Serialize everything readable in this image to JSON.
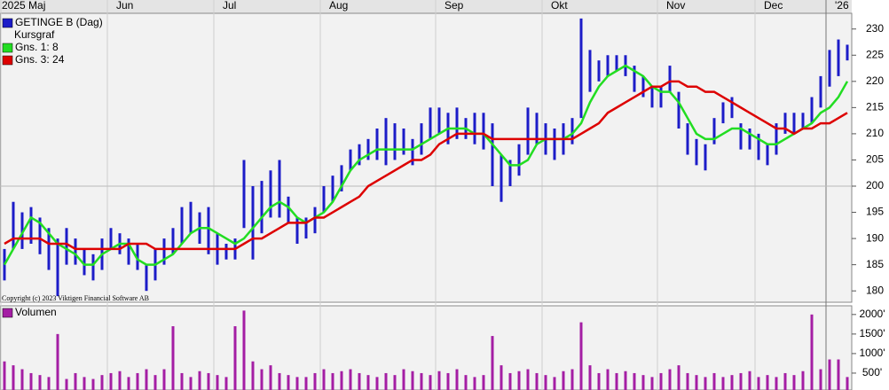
{
  "chart_data": [
    {
      "type": "range-bar",
      "legend_title": "Kursgraf",
      "copyright": "Copyright (c) 2023 Viktigen Financial Software AB",
      "categories": [
        "2025 Maj",
        null,
        null,
        null,
        null,
        null,
        null,
        null,
        null,
        null,
        null,
        null,
        "Jun",
        null,
        null,
        null,
        null,
        null,
        null,
        null,
        null,
        null,
        null,
        null,
        "Jul",
        null,
        null,
        null,
        null,
        null,
        null,
        null,
        null,
        null,
        null,
        null,
        "Aug",
        null,
        null,
        null,
        null,
        null,
        null,
        null,
        null,
        null,
        null,
        null,
        null,
        "Sep",
        null,
        null,
        null,
        null,
        null,
        null,
        null,
        null,
        null,
        null,
        null,
        "Okt",
        null,
        null,
        null,
        null,
        null,
        null,
        null,
        null,
        null,
        null,
        null,
        null,
        "Nov",
        null,
        null,
        null,
        null,
        null,
        null,
        null,
        null,
        null,
        null,
        "Dec",
        null,
        null,
        null,
        null,
        null,
        null,
        null,
        "'26",
        null,
        null
      ],
      "ylim": [
        178,
        233
      ],
      "yticks": [
        180,
        185,
        190,
        195,
        200,
        205,
        210,
        215,
        220,
        225,
        230
      ],
      "ref_line": 200,
      "series": [
        {
          "name": "GETINGE B (Dag)",
          "color": "#1c1cc8",
          "low": [
            182,
            188,
            188,
            189,
            187,
            184,
            179,
            185,
            185,
            183,
            182,
            184,
            188,
            187,
            185,
            184,
            180,
            182,
            185,
            187,
            189,
            191,
            189,
            187,
            185,
            186,
            186,
            192,
            186,
            191,
            194,
            194,
            193,
            189,
            190,
            191,
            195,
            197,
            199,
            203,
            204,
            205,
            205,
            204,
            205,
            206,
            204,
            206,
            209,
            210,
            208,
            209,
            209,
            208,
            207,
            200,
            197,
            200,
            202,
            206,
            208,
            206,
            205,
            206,
            208,
            213,
            218,
            220,
            221,
            222,
            221,
            218,
            217,
            215,
            215,
            218,
            211,
            206,
            204,
            203,
            208,
            212,
            213,
            207,
            207,
            205,
            204,
            206,
            210,
            210,
            211,
            212,
            215,
            219,
            221,
            224
          ],
          "high": [
            188,
            197,
            195,
            196,
            194,
            192,
            190,
            192,
            190,
            188,
            187,
            190,
            192,
            191,
            190,
            189,
            185,
            188,
            190,
            192,
            196,
            197,
            195,
            196,
            191,
            189,
            190,
            205,
            200,
            201,
            203,
            205,
            198,
            194,
            194,
            196,
            200,
            202,
            204,
            207,
            208,
            209,
            211,
            213,
            212,
            211,
            209,
            212,
            215,
            215,
            214,
            215,
            213,
            214,
            214,
            212,
            206,
            205,
            208,
            215,
            214,
            212,
            211,
            212,
            213,
            232,
            226,
            224,
            225,
            225,
            225,
            223,
            221,
            219,
            219,
            223,
            218,
            212,
            209,
            208,
            213,
            216,
            217,
            212,
            211,
            210,
            208,
            212,
            214,
            214,
            214,
            217,
            221,
            226,
            228,
            227
          ]
        },
        {
          "name": "Gns. 1: 8",
          "color": "#22dd22",
          "values": [
            185,
            188,
            191,
            194,
            193,
            191,
            189,
            188,
            187,
            185,
            185,
            187,
            188,
            189,
            189,
            186,
            185,
            185,
            186,
            187,
            189,
            191,
            192,
            192,
            191,
            190,
            189,
            190,
            192,
            194,
            196,
            197,
            196,
            194,
            193,
            194,
            195,
            197,
            200,
            203,
            205,
            206,
            207,
            207,
            207,
            207,
            207,
            208,
            209,
            210,
            211,
            211,
            211,
            210,
            210,
            208,
            206,
            204,
            204,
            205,
            208,
            209,
            209,
            209,
            210,
            212,
            216,
            219,
            221,
            222,
            223,
            222,
            221,
            219,
            218,
            218,
            216,
            213,
            210,
            209,
            209,
            210,
            211,
            211,
            210,
            209,
            208,
            208,
            209,
            210,
            211,
            212,
            214,
            215,
            217,
            220
          ]
        },
        {
          "name": "Gns. 3: 24",
          "color": "#dd0000",
          "values": [
            189,
            190,
            190,
            190,
            190,
            189,
            189,
            189,
            188,
            188,
            188,
            188,
            188,
            188,
            189,
            189,
            189,
            188,
            188,
            188,
            188,
            188,
            188,
            188,
            188,
            188,
            188,
            189,
            190,
            190,
            191,
            192,
            193,
            193,
            193,
            194,
            194,
            195,
            196,
            197,
            198,
            200,
            201,
            202,
            203,
            204,
            205,
            205,
            206,
            208,
            209,
            210,
            210,
            210,
            210,
            209,
            209,
            209,
            209,
            209,
            209,
            209,
            209,
            209,
            209,
            210,
            211,
            212,
            214,
            215,
            216,
            217,
            218,
            219,
            219,
            220,
            220,
            219,
            219,
            218,
            218,
            217,
            216,
            215,
            214,
            213,
            212,
            211,
            211,
            210,
            211,
            211,
            212,
            212,
            213,
            214
          ]
        }
      ]
    },
    {
      "type": "bar",
      "ylim": [
        0,
        2200
      ],
      "yticks": [
        {
          "value": 500,
          "label": "500'"
        },
        {
          "value": 1000,
          "label": "1000'"
        },
        {
          "value": 1500,
          "label": "1500'"
        },
        {
          "value": 2000,
          "label": "2000'"
        }
      ],
      "series": [
        {
          "name": "Volumen",
          "color": "#a41ea4",
          "values": [
            800,
            700,
            600,
            500,
            450,
            400,
            1500,
            350,
            500,
            400,
            350,
            450,
            500,
            550,
            400,
            500,
            600,
            450,
            600,
            1700,
            500,
            400,
            550,
            500,
            450,
            400,
            1700,
            2100,
            800,
            600,
            700,
            500,
            450,
            400,
            400,
            500,
            600,
            500,
            550,
            600,
            500,
            450,
            400,
            500,
            450,
            600,
            550,
            500,
            450,
            550,
            500,
            600,
            450,
            400,
            450,
            1450,
            700,
            500,
            550,
            600,
            500,
            450,
            400,
            550,
            600,
            1800,
            700,
            500,
            600,
            500,
            550,
            500,
            450,
            400,
            500,
            600,
            700,
            500,
            450,
            400,
            500,
            400,
            450,
            500,
            550,
            400,
            450,
            400,
            500,
            450,
            550,
            2000,
            600,
            850,
            850,
            400
          ]
        }
      ]
    }
  ]
}
